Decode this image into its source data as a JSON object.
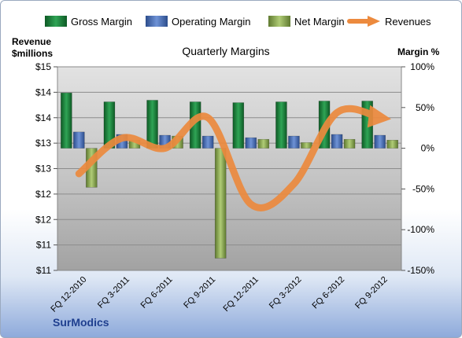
{
  "chart_data": {
    "type": "bar",
    "title": "Quarterly Margins",
    "y_left_label_line1": "Revenue",
    "y_left_label_line2": "$millions",
    "y_right_label": "Margin %",
    "brand": "SurModics",
    "categories": [
      "FQ 12-2010",
      "FQ 3-2011",
      "FQ 6-2011",
      "FQ 9-2011",
      "FQ 12-2011",
      "FQ 3-2012",
      "FQ 6-2012",
      "FQ 9-2012"
    ],
    "y_left_ticks": [
      "$15",
      "$14",
      "$14",
      "$13",
      "$13",
      "$12",
      "$12",
      "$11",
      "$11"
    ],
    "y_right_ticks": [
      "100%",
      "50%",
      "0%",
      "-50%",
      "-100%",
      "-150%"
    ],
    "y_right_range": [
      -150,
      100
    ],
    "y_left_range": [
      11,
      15
    ],
    "legend_position": "top",
    "series": [
      {
        "name": "Gross Margin",
        "color": "#1e7a3c",
        "values": [
          68,
          57,
          59,
          57,
          56,
          57,
          58,
          58
        ]
      },
      {
        "name": "Operating Margin",
        "color": "#4a6fb8",
        "values": [
          20,
          17,
          16,
          15,
          13,
          15,
          17,
          16
        ]
      },
      {
        "name": "Net Margin",
        "color": "#8aa654",
        "values": [
          -48,
          10,
          15,
          -135,
          11,
          7,
          11,
          10
        ]
      }
    ],
    "line_series": {
      "name": "Revenues",
      "color": "#ec8a3e",
      "values": [
        12.9,
        13.6,
        13.4,
        14.0,
        12.3,
        12.7,
        14.1,
        14.0
      ]
    }
  }
}
